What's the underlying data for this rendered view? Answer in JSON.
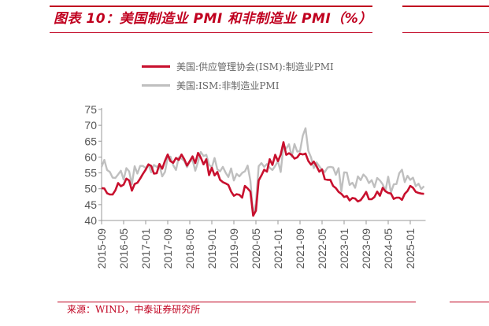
{
  "header": {
    "title": "图表 10：美国制造业 PMI 和非制造业 PMI（%）"
  },
  "source": "来源：WIND，中泰证券研究所",
  "colors": {
    "accent": "#c0001f",
    "manufacturing": "#c8102e",
    "non_manufacturing": "#bfbfbf"
  },
  "chart_data": {
    "type": "line",
    "title": "",
    "xlabel": "",
    "ylabel": "",
    "ylim": [
      40,
      75
    ],
    "yticks": [
      "40",
      "45",
      "50",
      "55",
      "60",
      "65",
      "70",
      "75"
    ],
    "xticks": [
      "2015-09",
      "2016-05",
      "2017-01",
      "2017-09",
      "2018-05",
      "2019-01",
      "2019-09",
      "2020-05",
      "2021-01",
      "2021-09",
      "2022-05",
      "2023-01",
      "2023-09",
      "2024-05",
      "2025-01"
    ],
    "x_start": "2015-09",
    "x_end": "2025-06",
    "legend_position": "top",
    "grid": false,
    "series": [
      {
        "name": "美国:供应管理协会(ISM):制造业PMI",
        "values": [
          50.2,
          50.1,
          48.6,
          48.2,
          48.2,
          49.5,
          51.8,
          50.8,
          51.3,
          53.2,
          52.6,
          49.4,
          51.5,
          51.9,
          53.2,
          54.7,
          56.0,
          57.7,
          57.2,
          54.8,
          54.9,
          57.8,
          56.3,
          58.8,
          60.8,
          58.7,
          58.2,
          59.7,
          59.1,
          60.8,
          59.3,
          57.3,
          58.7,
          60.2,
          58.1,
          61.3,
          59.8,
          57.7,
          59.3,
          54.3,
          56.6,
          54.2,
          55.3,
          52.8,
          52.1,
          51.7,
          51.2,
          49.1,
          47.8,
          48.3,
          48.1,
          47.2,
          50.9,
          50.1,
          49.1,
          41.5,
          43.1,
          52.6,
          54.2,
          56.0,
          55.4,
          59.3,
          57.5,
          60.7,
          58.7,
          60.8,
          64.7,
          60.7,
          61.2,
          60.6,
          59.5,
          59.9,
          61.1,
          60.8,
          61.1,
          58.8,
          57.6,
          58.6,
          57.1,
          55.4,
          56.1,
          53.0,
          52.8,
          52.8,
          50.9,
          50.2,
          49.0,
          48.4,
          47.4,
          47.7,
          46.3,
          47.1,
          46.9,
          46.0,
          46.4,
          47.6,
          49.0,
          46.7,
          46.7,
          47.4,
          49.1,
          47.8,
          50.3,
          49.2,
          48.7,
          48.5,
          46.8,
          47.2,
          47.2,
          46.5,
          48.4,
          49.3,
          50.9,
          50.3,
          49.0,
          48.7,
          48.5,
          48.4
        ]
      },
      {
        "name": "美国:ISM:非制造业PMI",
        "values": [
          56.9,
          59.1,
          55.9,
          55.3,
          53.5,
          53.4,
          54.5,
          55.7,
          52.9,
          56.5,
          55.5,
          51.4,
          57.1,
          54.8,
          57.2,
          57.2,
          56.5,
          57.6,
          55.2,
          57.5,
          56.9,
          57.4,
          53.9,
          55.3,
          59.8,
          60.1,
          57.4,
          55.9,
          59.9,
          59.5,
          58.8,
          56.8,
          58.6,
          59.1,
          55.7,
          58.5,
          61.6,
          60.3,
          60.7,
          57.6,
          56.7,
          59.7,
          56.1,
          55.5,
          56.9,
          55.1,
          53.7,
          56.4,
          52.6,
          54.7,
          53.9,
          55.0,
          55.5,
          57.3,
          52.5,
          41.8,
          45.4,
          57.1,
          58.1,
          56.9,
          57.8,
          56.6,
          55.9,
          57.2,
          58.7,
          55.3,
          63.7,
          62.7,
          64.0,
          60.1,
          64.1,
          61.7,
          61.9,
          66.7,
          69.1,
          62.0,
          59.9,
          56.5,
          58.3,
          57.1,
          55.9,
          55.3,
          56.7,
          56.9,
          56.7,
          54.4,
          56.5,
          49.2,
          55.2,
          55.1,
          51.2,
          51.9,
          50.3,
          53.9,
          52.7,
          54.5,
          53.6,
          51.8,
          52.7,
          50.5,
          53.4,
          52.6,
          51.4,
          49.4,
          53.8,
          48.8,
          51.4,
          51.5,
          54.9,
          56.0,
          52.1,
          54.1,
          52.8,
          53.5,
          50.8,
          51.6,
          49.9,
          50.8
        ]
      }
    ]
  }
}
